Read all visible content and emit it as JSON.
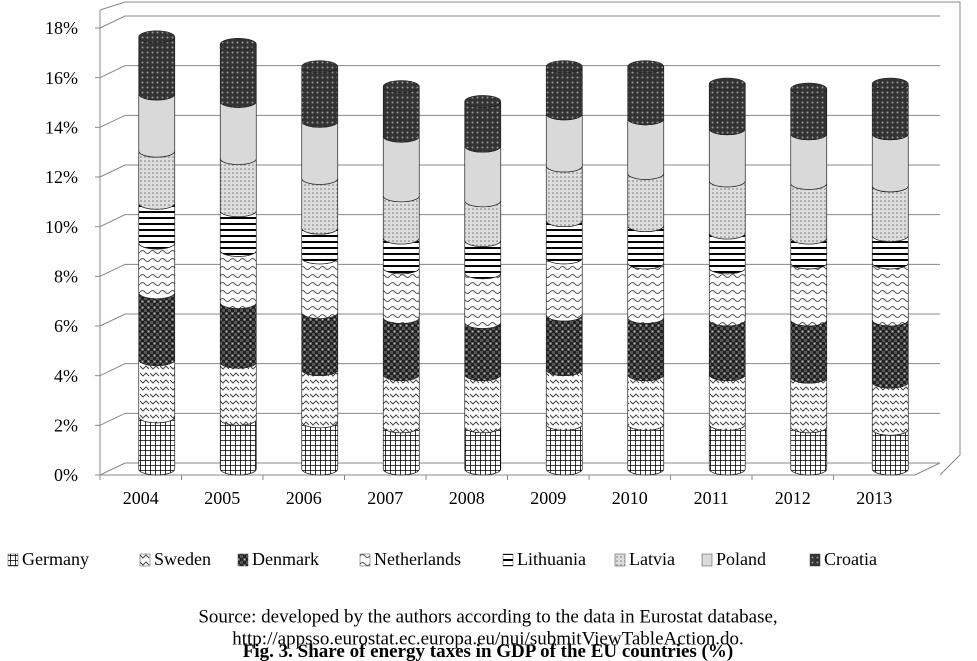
{
  "chart_data": {
    "type": "stacked-cylinder",
    "title": "Fig. 3. Share of energy taxes in GDP of the EU countries (%)",
    "source_lines": [
      "Source: developed by the authors according to the data in Eurostat database,",
      "http://appsso.eurostat.ec.europa.eu/nui/submitViewTableAction.do."
    ],
    "categories": [
      "2004",
      "2005",
      "2006",
      "2007",
      "2008",
      "2009",
      "2010",
      "2011",
      "2012",
      "2013"
    ],
    "series": [
      {
        "name": "Germany",
        "pattern": "grid",
        "values": [
          2.1,
          2.0,
          1.9,
          1.7,
          1.7,
          1.8,
          1.8,
          1.8,
          1.7,
          1.6
        ]
      },
      {
        "name": "Sweden",
        "pattern": "zigzag",
        "values": [
          2.3,
          2.3,
          2.1,
          2.1,
          2.1,
          2.2,
          2.0,
          2.0,
          2.0,
          1.9
        ]
      },
      {
        "name": "Denmark",
        "pattern": "dark-check",
        "values": [
          2.7,
          2.4,
          2.3,
          2.3,
          2.1,
          2.2,
          2.3,
          2.2,
          2.3,
          2.5
        ]
      },
      {
        "name": "Netherlands",
        "pattern": "wave",
        "values": [
          2.0,
          2.1,
          2.2,
          2.0,
          2.0,
          2.3,
          2.2,
          2.1,
          2.3,
          2.3
        ]
      },
      {
        "name": "Lithuania",
        "pattern": "hlines",
        "values": [
          1.6,
          1.6,
          1.2,
          1.2,
          1.3,
          1.5,
          1.5,
          1.4,
          1.0,
          1.1
        ]
      },
      {
        "name": "Latvia",
        "pattern": "dots",
        "values": [
          2.1,
          2.1,
          2.0,
          1.7,
          1.6,
          2.2,
          2.1,
          2.1,
          2.2,
          2.0
        ]
      },
      {
        "name": "Poland",
        "pattern": "light",
        "values": [
          2.3,
          2.3,
          2.3,
          2.4,
          2.2,
          2.1,
          2.2,
          2.1,
          2.0,
          2.1
        ]
      },
      {
        "name": "Croatia",
        "pattern": "dark-dots",
        "values": [
          2.3,
          2.3,
          2.2,
          2.0,
          1.8,
          1.9,
          2.1,
          1.8,
          1.8,
          2.0
        ]
      }
    ],
    "ylim": [
      0,
      18
    ],
    "yticks": [
      {
        "value": 0,
        "label": "0%"
      },
      {
        "value": 2,
        "label": "2%"
      },
      {
        "value": 4,
        "label": "4%"
      },
      {
        "value": 6,
        "label": "6%"
      },
      {
        "value": 8,
        "label": "8%"
      },
      {
        "value": 10,
        "label": "10%"
      },
      {
        "value": 12,
        "label": "12%"
      },
      {
        "value": 14,
        "label": "14%"
      },
      {
        "value": 16,
        "label": "16%"
      },
      {
        "value": 18,
        "label": "18%"
      }
    ],
    "grid": true
  }
}
